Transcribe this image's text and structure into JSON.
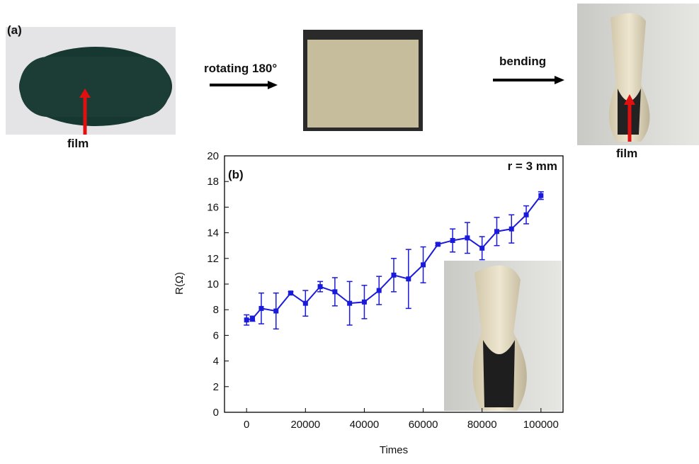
{
  "figure": {
    "panel_a": "(a)",
    "step1": "rotating 180°",
    "step2": "bending",
    "film_left": "film",
    "film_right": "film"
  },
  "chart_data": {
    "type": "line",
    "panel": "(b)",
    "annotation": "r = 3 mm",
    "x_label": "Times",
    "y_label": "R(Ω)",
    "x": [
      0,
      2000,
      5000,
      10000,
      15000,
      20000,
      25000,
      30000,
      35000,
      40000,
      45000,
      50000,
      55000,
      60000,
      65000,
      70000,
      75000,
      80000,
      85000,
      90000,
      95000,
      100000
    ],
    "series": [
      {
        "color": "#1a1adc",
        "values": [
          7.2,
          7.3,
          8.1,
          7.9,
          9.3,
          8.5,
          9.8,
          9.4,
          8.5,
          8.6,
          9.5,
          10.7,
          10.4,
          11.5,
          13.1,
          13.4,
          13.6,
          12.8,
          14.1,
          14.3,
          15.4,
          16.9
        ],
        "errors": [
          0.4,
          0.2,
          1.2,
          1.4,
          0.1,
          1.0,
          0.4,
          1.1,
          1.7,
          1.3,
          1.1,
          1.3,
          2.3,
          1.4,
          0.1,
          0.9,
          1.2,
          0.9,
          1.1,
          1.1,
          0.7,
          0.3
        ]
      }
    ],
    "xlim": [
      -7500,
      107500
    ],
    "ylim": [
      0,
      20
    ],
    "xticks": [
      0,
      20000,
      40000,
      60000,
      80000,
      100000
    ],
    "yticks": [
      0,
      2,
      4,
      6,
      8,
      10,
      12,
      14,
      16,
      18,
      20
    ]
  }
}
